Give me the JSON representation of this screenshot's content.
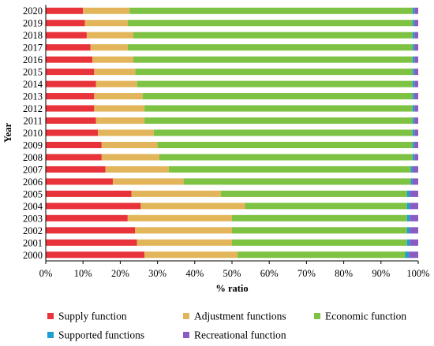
{
  "chart_data": {
    "type": "bar",
    "orientation": "horizontal",
    "stacked": "percent",
    "xlabel": "% ratio",
    "ylabel": "Year",
    "xlim": [
      0,
      100
    ],
    "x_ticks": [
      "0%",
      "10%",
      "20%",
      "30%",
      "40%",
      "50%",
      "60%",
      "70%",
      "80%",
      "90%",
      "100%"
    ],
    "grid": false,
    "legend_position": "bottom",
    "categories": [
      "2020",
      "2019",
      "2018",
      "2017",
      "2016",
      "2015",
      "2014",
      "2013",
      "2012",
      "2011",
      "2010",
      "2009",
      "2008",
      "2007",
      "2006",
      "2005",
      "2004",
      "2003",
      "2002",
      "2001",
      "2000"
    ],
    "series": [
      {
        "name": "Supply function",
        "color": "#e8333b",
        "values": [
          10,
          10.5,
          11,
          12,
          12.5,
          13,
          13.5,
          13,
          13,
          13.5,
          14,
          15,
          15,
          16,
          18,
          23,
          25.5,
          22,
          24,
          24.5,
          26.5
        ]
      },
      {
        "name": "Adjustment functions",
        "color": "#e3b55a",
        "values": [
          12.5,
          11.5,
          12.5,
          10,
          11,
          11,
          11,
          13,
          13.5,
          13,
          15,
          15,
          15.5,
          17,
          19,
          24,
          28,
          28,
          26,
          25.5,
          25
        ]
      },
      {
        "name": "Economic function",
        "color": "#7dc242",
        "values": [
          76,
          76.5,
          75,
          76.5,
          75,
          74.5,
          74,
          72.5,
          72,
          72,
          69.5,
          68.5,
          68,
          65,
          61,
          50,
          43.5,
          47,
          47,
          47,
          45
        ]
      },
      {
        "name": "Supported functions",
        "color": "#1f9ed1",
        "values": [
          0.5,
          0.5,
          0.5,
          0.5,
          0.5,
          0.5,
          0.5,
          0.5,
          0.5,
          0.5,
          0.5,
          0.5,
          0.5,
          0.5,
          0.5,
          0.8,
          0.8,
          0.8,
          0.8,
          0.8,
          1
        ]
      },
      {
        "name": "Recreational function",
        "color": "#8a5cc2",
        "values": [
          1,
          1,
          1,
          1,
          1,
          1,
          1,
          1,
          1,
          1,
          1,
          1,
          1,
          1.5,
          1.5,
          2.2,
          2.2,
          2.2,
          2.2,
          2.2,
          2.5
        ]
      }
    ]
  }
}
